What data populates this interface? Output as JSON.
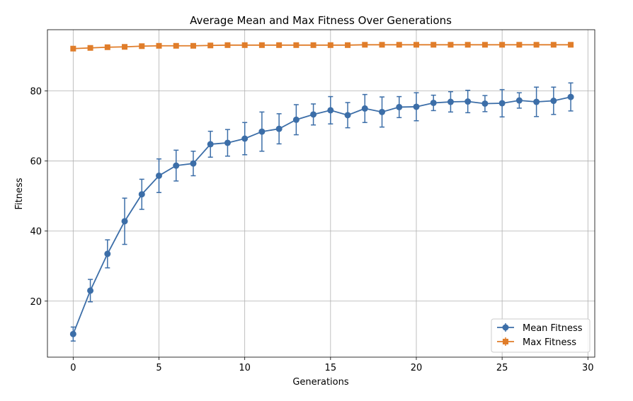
{
  "chart_data": {
    "type": "line",
    "title": "Average Mean and Max Fitness Over Generations",
    "xlabel": "Generations",
    "ylabel": "Fitness",
    "xlim": [
      -1.5,
      30.4
    ],
    "ylim": [
      4.0,
      97.5
    ],
    "x_ticks": [
      0,
      5,
      10,
      15,
      20,
      25,
      30
    ],
    "y_ticks": [
      20,
      40,
      60,
      80
    ],
    "grid": true,
    "legend_position": "lower-right",
    "x": [
      0,
      1,
      2,
      3,
      4,
      5,
      6,
      7,
      8,
      9,
      10,
      11,
      12,
      13,
      14,
      15,
      16,
      17,
      18,
      19,
      20,
      21,
      22,
      23,
      24,
      25,
      26,
      27,
      28,
      29
    ],
    "series": [
      {
        "name": "Mean Fitness",
        "color": "#3c6ea8",
        "marker": "circle",
        "values": [
          10.6,
          23.0,
          33.5,
          42.8,
          50.5,
          55.8,
          58.7,
          59.3,
          64.8,
          65.2,
          66.4,
          68.4,
          69.2,
          71.8,
          73.3,
          74.5,
          73.1,
          75.0,
          74.0,
          75.4,
          75.5,
          76.6,
          76.9,
          77.0,
          76.4,
          76.5,
          77.3,
          76.9,
          77.2,
          78.3
        ],
        "error": [
          2.0,
          3.2,
          4.0,
          6.6,
          4.3,
          4.8,
          4.4,
          3.5,
          3.7,
          3.8,
          4.6,
          5.6,
          4.3,
          4.3,
          3.0,
          3.9,
          3.6,
          4.0,
          4.3,
          3.0,
          4.0,
          2.2,
          2.9,
          3.2,
          2.3,
          3.9,
          2.2,
          4.2,
          3.9,
          4.0
        ]
      },
      {
        "name": "Max Fitness",
        "color": "#e07d2a",
        "marker": "square",
        "values": [
          92.1,
          92.3,
          92.5,
          92.6,
          92.8,
          92.9,
          92.9,
          92.9,
          93.0,
          93.1,
          93.1,
          93.1,
          93.1,
          93.1,
          93.1,
          93.1,
          93.1,
          93.2,
          93.2,
          93.2,
          93.2,
          93.2,
          93.2,
          93.2,
          93.2,
          93.2,
          93.2,
          93.2,
          93.2,
          93.2
        ],
        "error": [
          0.4,
          0.4,
          0.4,
          0.4,
          0.4,
          0.4,
          0.4,
          0.4,
          0.4,
          0.4,
          0.4,
          0.4,
          0.4,
          0.4,
          0.4,
          0.4,
          0.4,
          0.4,
          0.4,
          0.4,
          0.4,
          0.4,
          0.4,
          0.4,
          0.4,
          0.4,
          0.4,
          0.4,
          0.4,
          0.4
        ]
      }
    ]
  }
}
